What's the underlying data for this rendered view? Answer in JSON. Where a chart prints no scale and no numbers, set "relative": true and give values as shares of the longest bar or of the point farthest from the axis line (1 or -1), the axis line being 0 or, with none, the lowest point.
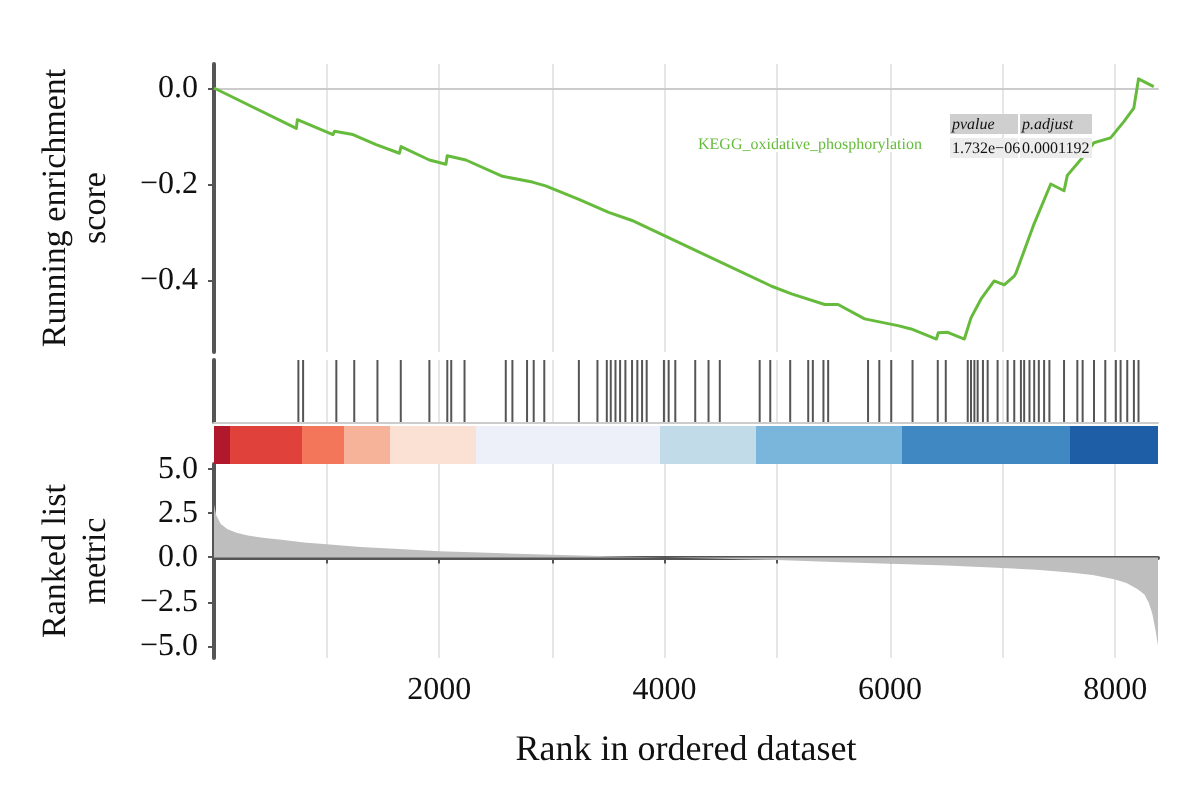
{
  "chart_data": [
    {
      "type": "line",
      "ylabel": "Running enrichment score",
      "xlim": [
        0,
        8380
      ],
      "xticks": [
        {
          "value": 1000,
          "label": null
        },
        2000,
        {
          "value": 3000,
          "label": null
        },
        4000,
        {
          "value": 5000,
          "label": null
        },
        6000,
        {
          "value": 7000,
          "label": null
        },
        8000
      ],
      "ylim": [
        -0.55,
        0.05
      ],
      "yticks": [
        {
          "value": -0.4,
          "label": "−0.4"
        },
        {
          "value": -0.2,
          "label": "−0.2"
        },
        {
          "value": 0,
          "label": "0.0"
        }
      ],
      "tick_labels": "y",
      "grid": "x",
      "marker": "none",
      "annotations": [
        "pvalue",
        "p.adjust",
        "1.732e−06",
        "0.0001192"
      ],
      "series": [
        {
          "name": "KEGG_oxidative_phosphorylation",
          "color": "#66bb3c",
          "x": [
            0,
            731,
            740,
            1056,
            1070,
            1233,
            1439,
            1646,
            1660,
            1912,
            2059,
            2070,
            2236,
            2561,
            2826,
            2944,
            3239,
            3504,
            3711,
            4950,
            5127,
            5422,
            5540,
            5776,
            6071,
            6189,
            6413,
            6430,
            6513,
            6661,
            6720,
            6808,
            6926,
            7015,
            7103,
            7120,
            7280,
            7428,
            7546,
            7575,
            7723,
            7811,
            7959,
            8077,
            8165,
            8207,
            8342
          ],
          "values": [
            0.0,
            -0.084,
            -0.066,
            -0.097,
            -0.09,
            -0.097,
            -0.118,
            -0.136,
            -0.122,
            -0.15,
            -0.159,
            -0.141,
            -0.15,
            -0.184,
            -0.196,
            -0.204,
            -0.232,
            -0.259,
            -0.276,
            -0.413,
            -0.429,
            -0.451,
            -0.451,
            -0.481,
            -0.495,
            -0.502,
            -0.523,
            -0.51,
            -0.509,
            -0.523,
            -0.479,
            -0.44,
            -0.402,
            -0.41,
            -0.392,
            -0.385,
            -0.283,
            -0.2,
            -0.214,
            -0.182,
            -0.141,
            -0.114,
            -0.104,
            -0.07,
            -0.042,
            0.019,
            0.003
          ]
        }
      ]
    },
    {
      "type": "bar",
      "relative": true,
      "xlim": [
        0,
        8380
      ],
      "xticks": [
        {
          "value": 1000,
          "label": null
        },
        {
          "value": 2000,
          "label": null
        },
        {
          "value": 3000,
          "label": null
        },
        {
          "value": 4000,
          "label": null
        },
        {
          "value": 5000,
          "label": null
        },
        {
          "value": 6000,
          "label": null
        },
        {
          "value": 7000,
          "label": null
        },
        {
          "value": 8000,
          "label": null
        }
      ],
      "tick_labels": false,
      "grid": "x",
      "color": "#555555",
      "x": [
        749,
        791,
        1086,
        1245,
        1451,
        1658,
        1912,
        2071,
        2106,
        2224,
        2590,
        2649,
        2779,
        2838,
        2932,
        3239,
        3404,
        3487,
        3522,
        3564,
        3605,
        3652,
        3711,
        3758,
        3800,
        3841,
        3994,
        4036,
        4095,
        4272,
        4390,
        4490,
        4844,
        4938,
        5115,
        5275,
        5316,
        5410,
        5452,
        5806,
        5906,
        6012,
        6201,
        6425,
        6496,
        6691,
        6720,
        6750,
        6779,
        6826,
        6868,
        6956,
        7045,
        7104,
        7163,
        7192,
        7239,
        7281,
        7322,
        7369,
        7416,
        7546,
        7664,
        7711,
        7812,
        7912,
        8006,
        8048,
        8107,
        8166,
        8207
      ],
      "values": [
        1,
        1,
        1,
        1,
        1,
        1,
        1,
        1,
        1,
        1,
        1,
        1,
        1,
        1,
        1,
        1,
        1,
        1,
        1,
        1,
        1,
        1,
        1,
        1,
        1,
        1,
        1,
        1,
        1,
        1,
        1,
        1,
        1,
        1,
        1,
        1,
        1,
        1,
        1,
        1,
        1,
        1,
        1,
        1,
        1,
        1,
        1,
        1,
        1,
        1,
        1,
        1,
        1,
        1,
        1,
        1,
        1,
        1,
        1,
        1,
        1,
        1,
        1,
        1,
        1,
        1,
        1,
        1,
        1,
        1,
        1
      ]
    },
    {
      "type": "area",
      "xlabel": "Rank in ordered dataset",
      "ylabel": "Ranked list metric",
      "xlim": [
        0,
        8380
      ],
      "xticks": [
        {
          "value": 1000,
          "label": null
        },
        2000,
        {
          "value": 3000,
          "label": null
        },
        4000,
        {
          "value": 5000,
          "label": null
        },
        6000,
        {
          "value": 7000,
          "label": null
        },
        8000
      ],
      "ylim": [
        -5.7,
        5.3
      ],
      "yticks": [
        {
          "value": -5,
          "label": "−5.0"
        },
        {
          "value": -2.5,
          "label": "−2.5"
        },
        {
          "value": 0,
          "label": "0.0"
        },
        {
          "value": 2.5,
          "label": "2.5"
        },
        {
          "value": 5,
          "label": "5.0"
        }
      ],
      "grid": "x",
      "color": "#bebebe",
      "x": [
        0,
        20,
        60,
        120,
        200,
        300,
        450,
        600,
        800,
        1000,
        1300,
        1600,
        2000,
        2500,
        3000,
        3500,
        4000,
        4500,
        5000,
        5500,
        6000,
        6500,
        7000,
        7300,
        7600,
        7800,
        8000,
        8100,
        8200,
        8260,
        8300,
        8330,
        8360,
        8380
      ],
      "values": [
        3.0,
        2.4,
        1.9,
        1.6,
        1.4,
        1.25,
        1.1,
        1.0,
        0.85,
        0.75,
        0.6,
        0.5,
        0.35,
        0.25,
        0.15,
        0.07,
        0.0,
        -0.07,
        -0.15,
        -0.25,
        -0.35,
        -0.45,
        -0.6,
        -0.7,
        -0.85,
        -1.0,
        -1.25,
        -1.45,
        -1.8,
        -2.1,
        -2.6,
        -3.2,
        -4.2,
        -5.0
      ]
    }
  ]
}
